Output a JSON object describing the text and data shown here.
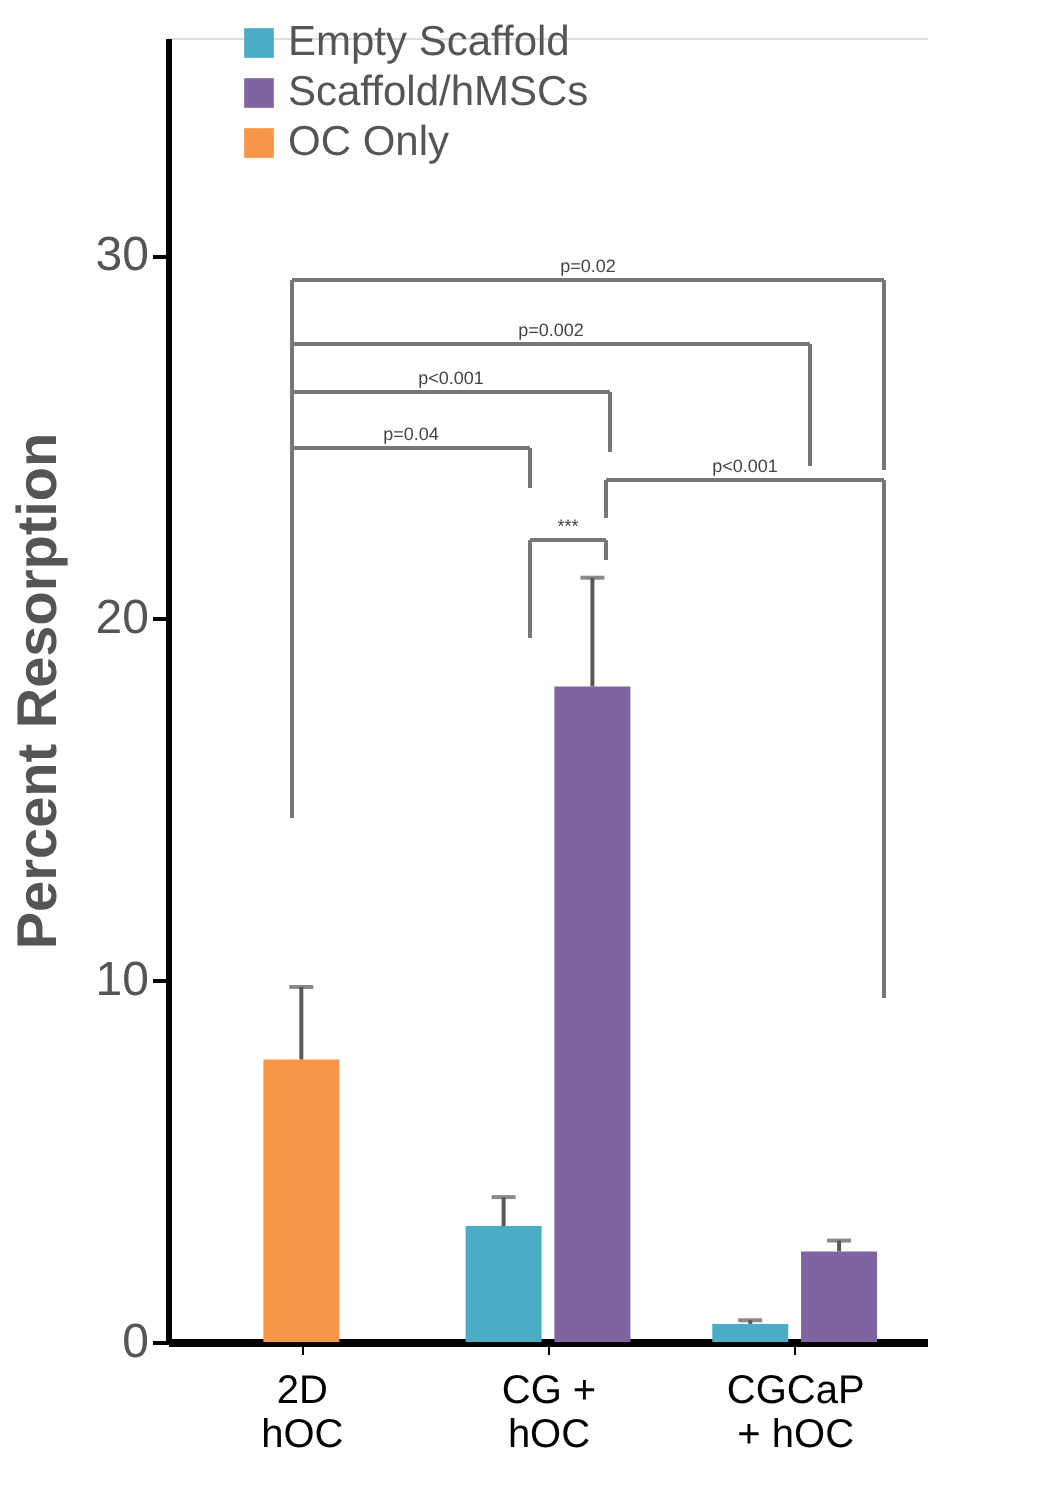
{
  "chart_data": {
    "type": "bar",
    "ylabel": "Percent Resorption",
    "categories": [
      "2D\nhOC",
      "CG +\nhOC",
      "CGCaP\n+ hOC"
    ],
    "series": [
      {
        "name": "Empty Scaffold",
        "color": "#4bacc6",
        "values": [
          null,
          3.2,
          0.5
        ],
        "errors": [
          null,
          [
            3.2,
            4.0
          ],
          [
            0.5,
            0.6
          ]
        ]
      },
      {
        "name": "Scaffold/hMSCs",
        "color": "#8064a2",
        "values": [
          null,
          18.1,
          2.5
        ],
        "errors": [
          null,
          [
            18.1,
            21.1
          ],
          [
            2.5,
            2.8
          ]
        ]
      },
      {
        "name": "OC Only",
        "color": "#f79646",
        "values": [
          7.8,
          null,
          null
        ],
        "errors": [
          [
            7.8,
            9.8
          ],
          null,
          null
        ]
      }
    ],
    "ylim": [
      0,
      36
    ],
    "yticks": [
      0,
      10,
      20,
      30
    ],
    "grid": false,
    "legend": "top",
    "annotations": [
      "p=0.02",
      "p=0.002",
      "p<0.001",
      "p=0.04",
      "***",
      "p<0.001"
    ]
  }
}
